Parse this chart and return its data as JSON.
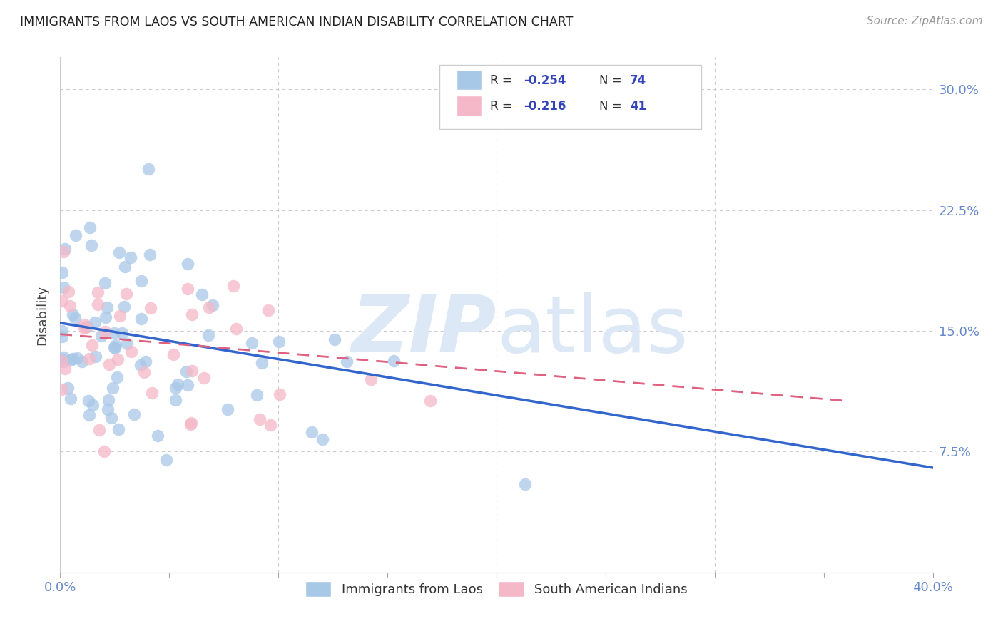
{
  "title": "IMMIGRANTS FROM LAOS VS SOUTH AMERICAN INDIAN DISABILITY CORRELATION CHART",
  "source": "Source: ZipAtlas.com",
  "ylabel": "Disability",
  "xlim": [
    0.0,
    0.4
  ],
  "ylim": [
    0.0,
    0.32
  ],
  "ytick_values": [
    0.075,
    0.15,
    0.225,
    0.3
  ],
  "ytick_labels": [
    "7.5%",
    "15.0%",
    "22.5%",
    "30.0%"
  ],
  "xtick_values": [
    0.0,
    0.05,
    0.1,
    0.15,
    0.2,
    0.25,
    0.3,
    0.35,
    0.4
  ],
  "grid_color": "#cccccc",
  "legend_R1": "-0.254",
  "legend_N1": "74",
  "legend_R2": "-0.216",
  "legend_N2": "41",
  "color_laos": "#a8c8e8",
  "color_sam": "#f4b8c8",
  "line_color_laos": "#3366cc",
  "line_color_sam": "#e06080",
  "watermark_color": "#dce8f5",
  "background_color": "#ffffff",
  "tick_color": "#6688cc",
  "grid_dash": [
    4,
    4
  ]
}
